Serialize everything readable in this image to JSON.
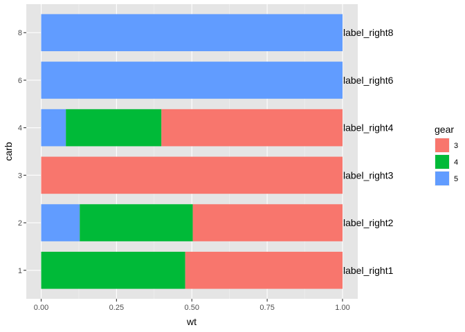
{
  "chart_data": {
    "type": "bar",
    "orientation": "horizontal",
    "stacked": "fill",
    "xlabel": "wt",
    "ylabel": "carb",
    "xlim": [
      0,
      1
    ],
    "x_ticks": [
      "0.00",
      "0.25",
      "0.50",
      "0.75",
      "1.00"
    ],
    "x_tick_values": [
      0,
      0.25,
      0.5,
      0.75,
      1
    ],
    "categories": [
      "1",
      "2",
      "3",
      "4",
      "6",
      "8"
    ],
    "category_values": [
      1,
      2,
      3,
      4,
      6,
      8
    ],
    "y_ticks": [
      "1",
      "2",
      "3",
      "4",
      "6",
      "8"
    ],
    "grid": true,
    "background": "#E5E5E5",
    "legend_position": "right",
    "legend_title": "gear",
    "series": [
      {
        "name": "3",
        "color": "#F8766D",
        "values": [
          0.522,
          0.497,
          1.0,
          0.601,
          0.0,
          0.0
        ]
      },
      {
        "name": "4",
        "color": "#00BA38",
        "values": [
          0.478,
          0.375,
          0.0,
          0.317,
          0.0,
          0.0
        ]
      },
      {
        "name": "5",
        "color": "#619CFF",
        "values": [
          0.0,
          0.128,
          0.0,
          0.082,
          1.0,
          1.0
        ]
      }
    ],
    "bar_labels": [
      "label_right1",
      "label_right2",
      "label_right3",
      "label_right4",
      "label_right6",
      "label_right8"
    ]
  }
}
